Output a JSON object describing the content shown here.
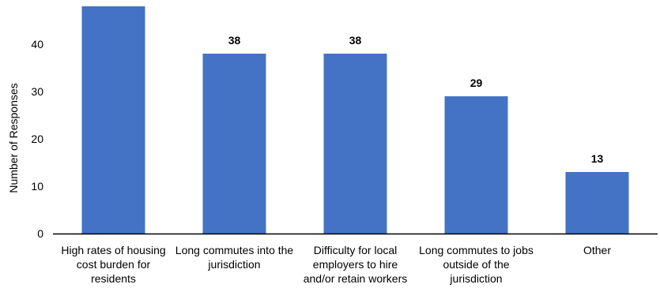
{
  "chart_data": {
    "type": "bar",
    "categories": [
      [
        "High rates of housing",
        "cost burden for",
        "residents"
      ],
      [
        "Long commutes into the",
        "jurisdiction"
      ],
      [
        "Difficulty for local",
        "employers to hire",
        "and/or retain workers"
      ],
      [
        "Long commutes to jobs",
        "outside of the",
        "jurisdiction"
      ],
      [
        "Other"
      ]
    ],
    "values": [
      50,
      38,
      38,
      29,
      13
    ],
    "data_labels": [
      "",
      "38",
      "38",
      "29",
      "13"
    ],
    "ylabel": "Number of Responses",
    "xlabel": "",
    "ylim": [
      0,
      48
    ],
    "yticks": [
      0,
      10,
      20,
      30,
      40
    ],
    "grid": false,
    "bar_color": "#4472C4",
    "axis_color": "#000000"
  }
}
